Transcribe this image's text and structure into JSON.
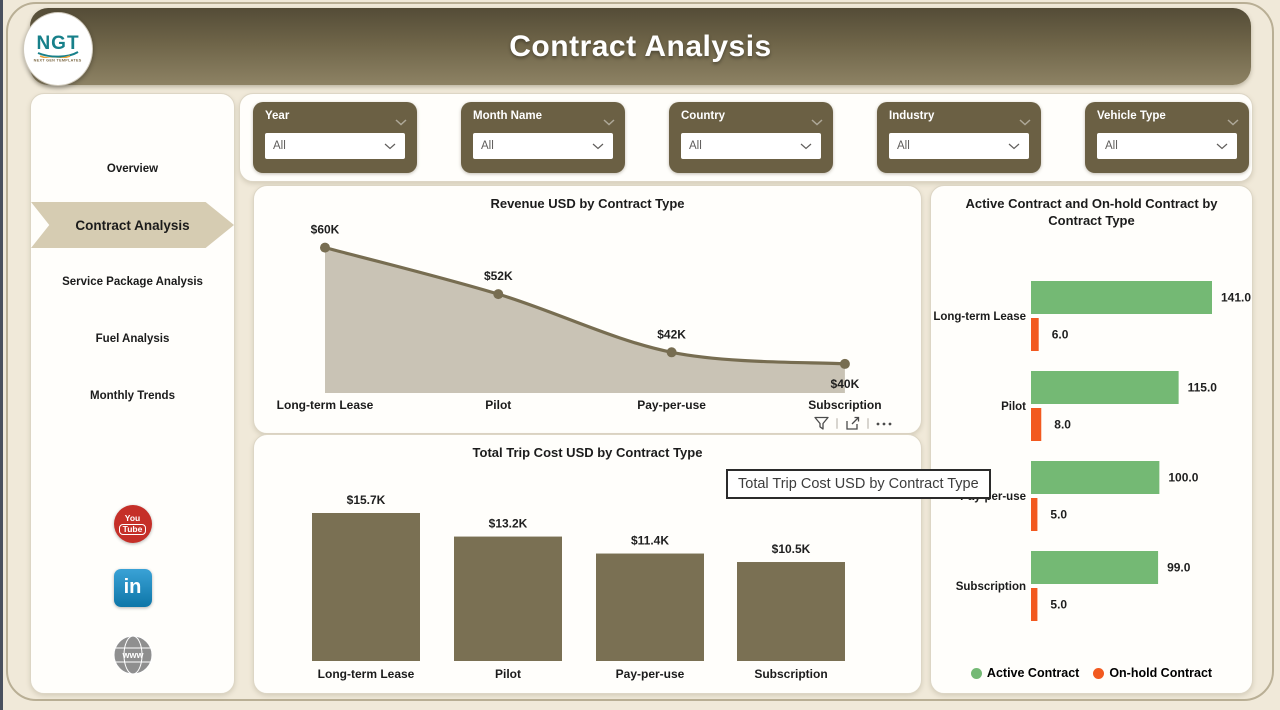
{
  "header": {
    "title": "Contract Analysis",
    "logo": {
      "text": "NGT",
      "subtext": "NEXT GEN TEMPLATES"
    }
  },
  "sidebar": {
    "items": [
      {
        "label": "Overview",
        "active": false
      },
      {
        "label": "Contract Analysis",
        "active": true
      },
      {
        "label": "Service Package Analysis",
        "active": false
      },
      {
        "label": "Fuel Analysis",
        "active": false
      },
      {
        "label": "Monthly Trends",
        "active": false
      }
    ],
    "social": [
      {
        "id": "youtube",
        "lines": [
          "You",
          "Tube"
        ]
      },
      {
        "id": "linkedin",
        "text": "in"
      },
      {
        "id": "website",
        "text": "www"
      }
    ]
  },
  "filters": [
    {
      "label": "Year",
      "value": "All"
    },
    {
      "label": "Month Name",
      "value": "All"
    },
    {
      "label": "Country",
      "value": "All"
    },
    {
      "label": "Industry",
      "value": "All"
    },
    {
      "label": "Vehicle Type",
      "value": "All"
    }
  ],
  "tooltip": {
    "text": "Total Trip Cost USD by Contract Type"
  },
  "hover_toolbar": {
    "icons": [
      "filter-icon",
      "focus-mode-icon",
      "more-options-icon"
    ]
  },
  "colors": {
    "olive": "#7a7053",
    "area_fill": "#c9c3b5",
    "green": "#74b974",
    "orange": "#f2591f",
    "filter_bg": "#6b6044",
    "active_nav": "#d6ccb2",
    "background": "#f0e9d9"
  },
  "chart_data": [
    {
      "type": "area",
      "title": "Revenue USD by Contract Type",
      "categories": [
        "Long-term Lease",
        "Pilot",
        "Pay-per-use",
        "Subscription"
      ],
      "values": [
        60000,
        52000,
        42000,
        40000
      ],
      "labels": [
        "$60K",
        "$52K",
        "$42K",
        "$40K"
      ],
      "label_positions": [
        "above",
        "above",
        "above",
        "below"
      ],
      "ylim": [
        35000,
        62000
      ],
      "line_color": "#776d51",
      "area_color": "#c9c3b5",
      "grid": false,
      "legend_position": "none"
    },
    {
      "type": "bar",
      "title": "Total Trip Cost USD by Contract Type",
      "categories": [
        "Long-term Lease",
        "Pilot",
        "Pay-per-use",
        "Subscription"
      ],
      "values": [
        15700,
        13200,
        11400,
        10500
      ],
      "labels": [
        "$15.7K",
        "$13.2K",
        "$11.4K",
        "$10.5K"
      ],
      "ylim": [
        0,
        15700
      ],
      "bar_color": "#7a7053",
      "grid": false,
      "legend_position": "none"
    },
    {
      "type": "bar-horizontal",
      "title": "Active Contract and On-hold Contract by Contract Type",
      "categories": [
        "Long-term Lease",
        "Pilot",
        "Pay-per-use",
        "Subscription"
      ],
      "series": [
        {
          "name": "Active Contract",
          "color": "#74b974",
          "values": [
            141,
            115,
            100,
            99
          ],
          "labels": [
            "141.0",
            "115.0",
            "100.0",
            "99.0"
          ]
        },
        {
          "name": "On-hold Contract",
          "color": "#f2591f",
          "values": [
            6,
            8,
            5,
            5
          ],
          "labels": [
            "6.0",
            "8.0",
            "5.0",
            "5.0"
          ]
        }
      ],
      "xlim": [
        0,
        155
      ],
      "grid": false,
      "legend_position": "bottom"
    }
  ]
}
